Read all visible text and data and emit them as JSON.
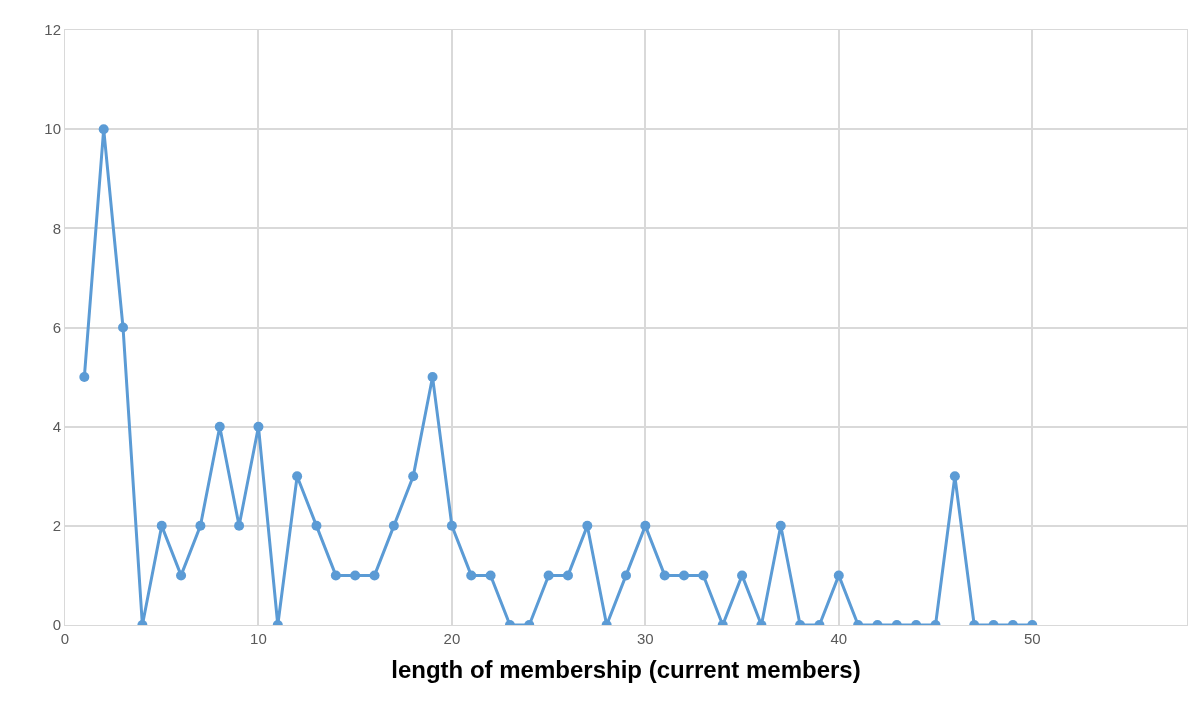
{
  "chart_data": {
    "type": "line",
    "xlabel": "length of membership (current members)",
    "x": [
      1,
      2,
      3,
      4,
      5,
      6,
      7,
      8,
      9,
      10,
      11,
      12,
      13,
      14,
      15,
      16,
      17,
      18,
      19,
      20,
      21,
      22,
      23,
      24,
      25,
      26,
      27,
      28,
      29,
      30,
      31,
      32,
      33,
      34,
      35,
      36,
      37,
      38,
      39,
      40,
      41,
      42,
      43,
      44,
      45,
      46,
      47,
      48,
      49,
      50
    ],
    "series": [
      {
        "color": "#5b9bd5",
        "values": [
          5,
          10,
          6,
          0,
          2,
          1,
          2,
          4,
          2,
          4,
          0,
          3,
          2,
          1,
          1,
          1,
          2,
          3,
          5,
          2,
          1,
          1,
          0,
          0,
          1,
          1,
          2,
          0,
          1,
          2,
          1,
          1,
          1,
          0,
          1,
          0,
          2,
          0,
          0,
          1,
          0,
          0,
          0,
          0,
          0,
          3,
          0,
          0,
          0,
          0
        ]
      }
    ],
    "xlim": [
      0,
      58
    ],
    "xticks": [
      0,
      10,
      20,
      30,
      40,
      50
    ],
    "ylim": [
      0,
      12
    ],
    "yticks": [
      0,
      2,
      4,
      6,
      8,
      10,
      12
    ],
    "grid": true,
    "marker": "circle",
    "line_style": "solid"
  }
}
